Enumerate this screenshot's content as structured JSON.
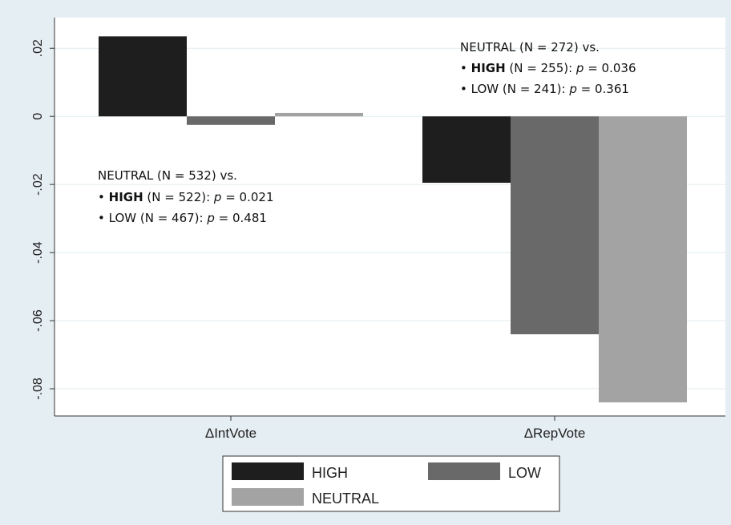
{
  "chart_data": {
    "type": "bar",
    "categories": [
      "ΔIntVote",
      "ΔRepVote"
    ],
    "series": [
      {
        "name": "HIGH",
        "values": [
          0.0235,
          -0.0195
        ],
        "color": "#1e1e1e"
      },
      {
        "name": "LOW",
        "values": [
          -0.0025,
          -0.064
        ],
        "color": "#696969"
      },
      {
        "name": "NEUTRAL",
        "values": [
          0.001,
          -0.084
        ],
        "color": "#a3a3a3"
      }
    ],
    "ylim": [
      -0.088,
      0.029
    ],
    "yticks": [
      0.02,
      0,
      -0.02,
      -0.04,
      -0.06,
      -0.08
    ],
    "ytick_labels": [
      ".02",
      "0",
      "-.02",
      "-.04",
      "-.06",
      "-.08"
    ],
    "title": "",
    "xlabel": "",
    "ylabel": "",
    "grid": true,
    "legend_position": "bottom",
    "annotations": [
      {
        "header": "NEUTRAL (N = 532) vs.",
        "items": [
          {
            "bullet": "•",
            "group": "HIGH",
            "n_text": " (N = 522): ",
            "p_label": "p",
            "p_value": " = 0.021"
          },
          {
            "bullet": "•",
            "group": "LOW",
            "n_text": " (N = 467): ",
            "p_label": "p",
            "p_value": " = 0.481"
          }
        ]
      },
      {
        "header": "NEUTRAL (N = 272) vs.",
        "items": [
          {
            "bullet": "•",
            "group": "HIGH",
            "n_text": " (N = 255): ",
            "p_label": "p",
            "p_value": " = 0.036"
          },
          {
            "bullet": "•",
            "group": "LOW",
            "n_text": " (N = 241): ",
            "p_label": "p",
            "p_value": " = 0.361"
          }
        ]
      }
    ],
    "colors": {
      "page_background": "#e5eef3",
      "plot_background": "#ffffff",
      "grid": "#e0ebf0",
      "axis": "#333333"
    }
  }
}
